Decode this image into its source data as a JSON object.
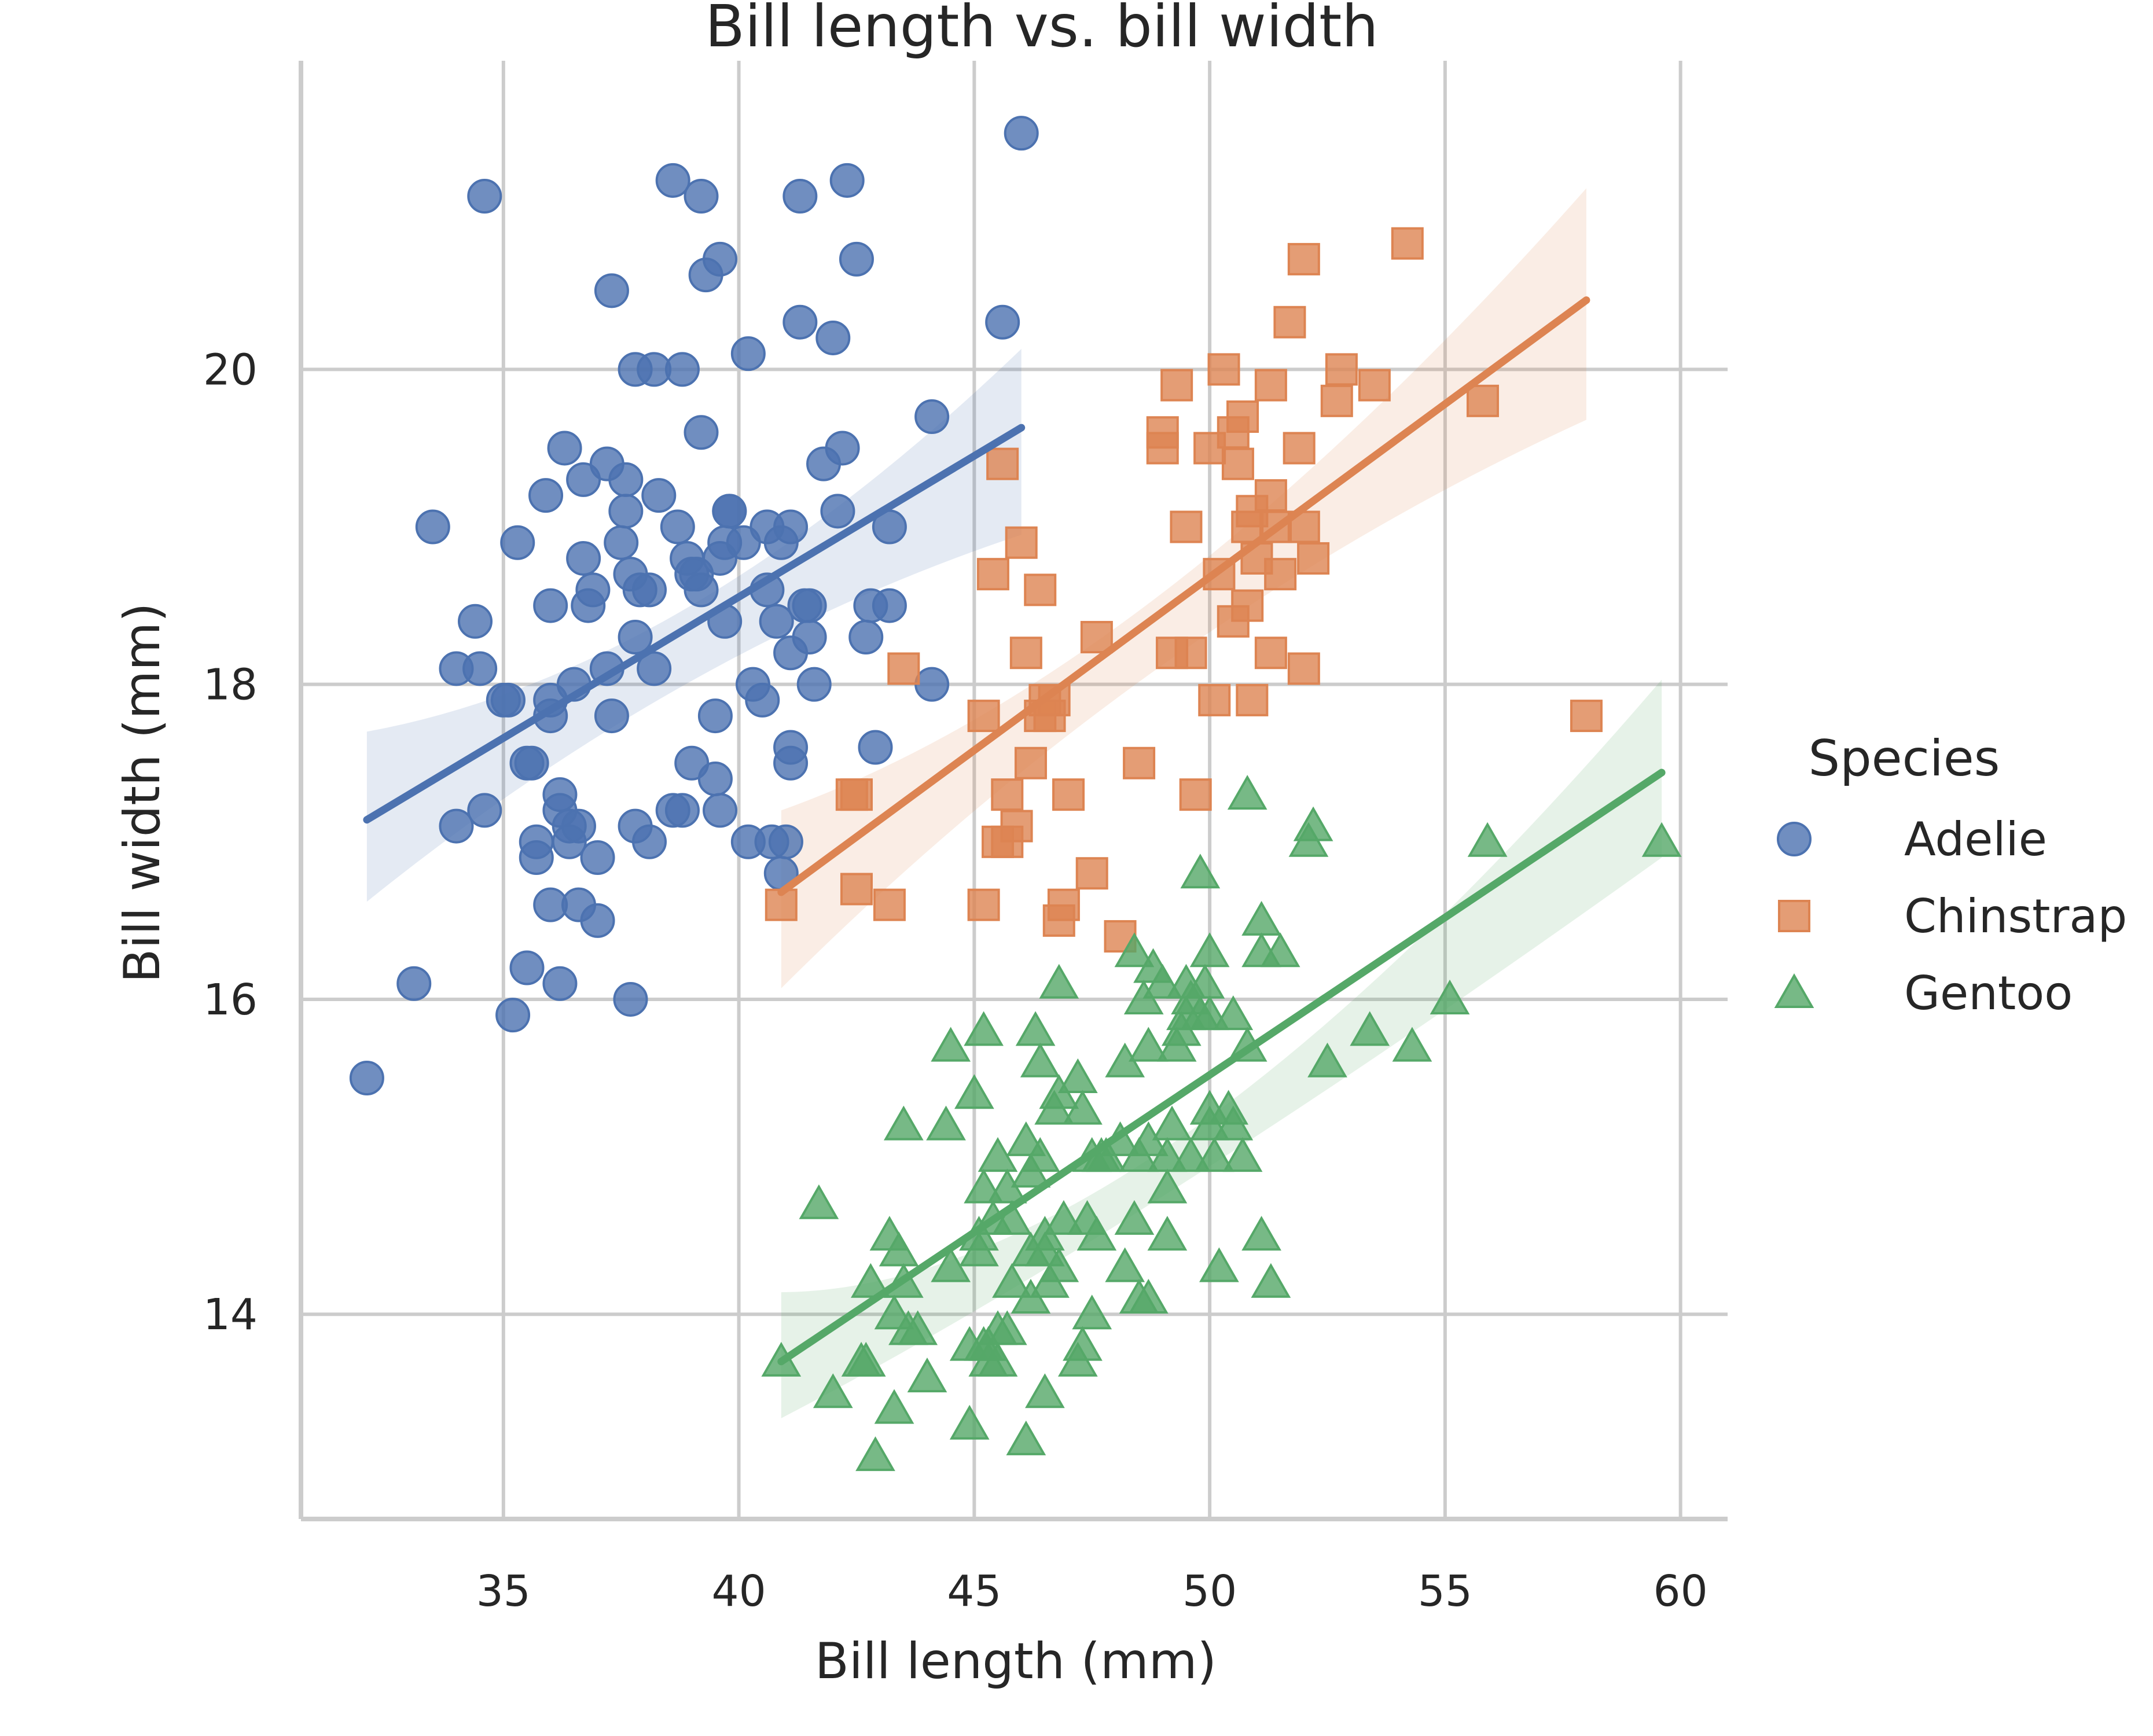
{
  "chart_data": {
    "type": "scatter",
    "title": "Bill length vs. bill width",
    "xlabel": "Bill length (mm)",
    "ylabel": "Bill width (mm)",
    "xlim": [
      30.7,
      61.0
    ],
    "ylim": [
      12.7,
      21.96
    ],
    "xticks": [
      35,
      40,
      45,
      50,
      55,
      60
    ],
    "yticks": [
      14,
      16,
      18,
      20
    ],
    "grid": true,
    "legend": {
      "title": "Species",
      "placement": "right-center"
    },
    "series": [
      {
        "name": "Adelie",
        "marker": "circle",
        "color": "#4c72b0",
        "points": [
          [
            32.1,
            15.5
          ],
          [
            33.1,
            16.1
          ],
          [
            33.5,
            19.0
          ],
          [
            34.0,
            17.1
          ],
          [
            34.0,
            18.1
          ],
          [
            34.4,
            18.4
          ],
          [
            34.5,
            18.1
          ],
          [
            34.6,
            21.1
          ],
          [
            34.6,
            17.2
          ],
          [
            35.0,
            17.9
          ],
          [
            35.1,
            17.9
          ],
          [
            35.2,
            15.9
          ],
          [
            35.3,
            18.9
          ],
          [
            35.5,
            17.5
          ],
          [
            35.5,
            16.2
          ],
          [
            35.6,
            17.5
          ],
          [
            35.7,
            16.9
          ],
          [
            35.7,
            17.0
          ],
          [
            35.9,
            19.2
          ],
          [
            36.0,
            17.9
          ],
          [
            36.0,
            18.5
          ],
          [
            36.0,
            16.6
          ],
          [
            36.0,
            17.8
          ],
          [
            36.2,
            17.2
          ],
          [
            36.2,
            16.1
          ],
          [
            36.2,
            17.3
          ],
          [
            36.3,
            19.5
          ],
          [
            36.4,
            17.1
          ],
          [
            36.4,
            17.0
          ],
          [
            36.5,
            18.0
          ],
          [
            36.6,
            17.1
          ],
          [
            36.6,
            16.6
          ],
          [
            36.7,
            18.8
          ],
          [
            36.7,
            19.3
          ],
          [
            36.8,
            18.5
          ],
          [
            36.9,
            18.6
          ],
          [
            37.0,
            16.9
          ],
          [
            37.0,
            16.5
          ],
          [
            37.2,
            18.1
          ],
          [
            37.2,
            19.4
          ],
          [
            37.3,
            17.8
          ],
          [
            37.3,
            20.5
          ],
          [
            37.5,
            18.9
          ],
          [
            37.6,
            19.3
          ],
          [
            37.6,
            19.1
          ],
          [
            37.7,
            16.0
          ],
          [
            37.7,
            18.7
          ],
          [
            37.8,
            17.1
          ],
          [
            37.8,
            18.3
          ],
          [
            37.8,
            20.0
          ],
          [
            37.9,
            18.6
          ],
          [
            38.1,
            18.6
          ],
          [
            38.1,
            17.0
          ],
          [
            38.2,
            18.1
          ],
          [
            38.2,
            20.0
          ],
          [
            38.3,
            19.2
          ],
          [
            38.6,
            21.2
          ],
          [
            38.6,
            17.2
          ],
          [
            38.7,
            19.0
          ],
          [
            38.8,
            17.2
          ],
          [
            38.8,
            20.0
          ],
          [
            38.9,
            18.8
          ],
          [
            39.0,
            17.5
          ],
          [
            39.0,
            18.7
          ],
          [
            39.1,
            18.7
          ],
          [
            39.2,
            19.6
          ],
          [
            39.2,
            21.1
          ],
          [
            39.2,
            18.6
          ],
          [
            39.3,
            20.6
          ],
          [
            39.5,
            17.4
          ],
          [
            39.5,
            17.8
          ],
          [
            39.6,
            17.2
          ],
          [
            39.6,
            18.8
          ],
          [
            39.6,
            20.7
          ],
          [
            39.7,
            18.4
          ],
          [
            39.7,
            18.9
          ],
          [
            39.8,
            19.1
          ],
          [
            39.8,
            19.1
          ],
          [
            40.1,
            18.9
          ],
          [
            40.2,
            17.0
          ],
          [
            40.2,
            20.1
          ],
          [
            40.3,
            18.0
          ],
          [
            40.5,
            17.9
          ],
          [
            40.6,
            18.6
          ],
          [
            40.6,
            19.0
          ],
          [
            40.7,
            17.0
          ],
          [
            40.8,
            18.4
          ],
          [
            40.9,
            18.9
          ],
          [
            40.9,
            16.8
          ],
          [
            41.0,
            17.0
          ],
          [
            41.1,
            17.6
          ],
          [
            41.1,
            18.2
          ],
          [
            41.1,
            17.5
          ],
          [
            41.1,
            19.0
          ],
          [
            41.3,
            20.3
          ],
          [
            41.3,
            21.1
          ],
          [
            41.4,
            18.5
          ],
          [
            41.5,
            18.3
          ],
          [
            41.5,
            18.5
          ],
          [
            41.6,
            18.0
          ],
          [
            41.8,
            19.4
          ],
          [
            42.0,
            20.2
          ],
          [
            42.1,
            19.1
          ],
          [
            42.2,
            19.5
          ],
          [
            42.3,
            21.2
          ],
          [
            42.5,
            20.7
          ],
          [
            42.7,
            18.3
          ],
          [
            42.8,
            18.5
          ],
          [
            42.9,
            17.6
          ],
          [
            43.2,
            19.0
          ],
          [
            43.2,
            18.5
          ],
          [
            44.1,
            19.7
          ],
          [
            44.1,
            18.0
          ],
          [
            45.6,
            20.3
          ],
          [
            46.0,
            21.5
          ]
        ]
      },
      {
        "name": "Chinstrap",
        "marker": "square",
        "color": "#dd8452",
        "points": [
          [
            40.9,
            16.6
          ],
          [
            42.4,
            17.3
          ],
          [
            42.5,
            17.3
          ],
          [
            42.5,
            16.7
          ],
          [
            43.2,
            16.6
          ],
          [
            43.5,
            18.1
          ],
          [
            45.2,
            17.8
          ],
          [
            45.2,
            16.6
          ],
          [
            45.4,
            18.7
          ],
          [
            45.5,
            17.0
          ],
          [
            45.6,
            19.4
          ],
          [
            45.7,
            17.0
          ],
          [
            45.7,
            17.3
          ],
          [
            45.9,
            17.1
          ],
          [
            46.0,
            18.9
          ],
          [
            46.1,
            18.2
          ],
          [
            46.2,
            17.5
          ],
          [
            46.4,
            18.6
          ],
          [
            46.4,
            17.8
          ],
          [
            46.5,
            17.9
          ],
          [
            46.6,
            17.8
          ],
          [
            46.7,
            17.9
          ],
          [
            46.8,
            16.5
          ],
          [
            46.9,
            16.6
          ],
          [
            47.0,
            17.3
          ],
          [
            47.5,
            16.8
          ],
          [
            47.6,
            18.3
          ],
          [
            48.1,
            16.4
          ],
          [
            48.5,
            17.5
          ],
          [
            49.0,
            19.5
          ],
          [
            49.0,
            19.6
          ],
          [
            49.2,
            18.2
          ],
          [
            49.3,
            19.9
          ],
          [
            49.5,
            19.0
          ],
          [
            49.6,
            18.2
          ],
          [
            49.7,
            17.3
          ],
          [
            50.0,
            19.5
          ],
          [
            50.1,
            17.9
          ],
          [
            50.2,
            18.7
          ],
          [
            50.3,
            20.0
          ],
          [
            50.5,
            18.4
          ],
          [
            50.5,
            19.6
          ],
          [
            50.6,
            19.4
          ],
          [
            50.7,
            19.7
          ],
          [
            50.8,
            18.5
          ],
          [
            50.8,
            19.0
          ],
          [
            50.9,
            19.1
          ],
          [
            50.9,
            17.9
          ],
          [
            51.0,
            18.8
          ],
          [
            51.3,
            18.2
          ],
          [
            51.3,
            19.2
          ],
          [
            51.3,
            19.9
          ],
          [
            51.4,
            19.0
          ],
          [
            51.5,
            18.7
          ],
          [
            51.7,
            20.3
          ],
          [
            51.9,
            19.5
          ],
          [
            52.0,
            18.1
          ],
          [
            52.0,
            20.7
          ],
          [
            52.0,
            19.0
          ],
          [
            52.2,
            18.8
          ],
          [
            52.7,
            19.8
          ],
          [
            52.8,
            20.0
          ],
          [
            53.5,
            19.9
          ],
          [
            54.2,
            20.8
          ],
          [
            55.8,
            19.8
          ],
          [
            58.0,
            17.8
          ]
        ]
      },
      {
        "name": "Gentoo",
        "marker": "triangle",
        "color": "#55a868",
        "points": [
          [
            40.9,
            13.7
          ],
          [
            41.7,
            14.7
          ],
          [
            42.0,
            13.5
          ],
          [
            42.6,
            13.7
          ],
          [
            42.7,
            13.7
          ],
          [
            42.8,
            14.2
          ],
          [
            42.9,
            13.1
          ],
          [
            43.2,
            14.5
          ],
          [
            43.3,
            13.4
          ],
          [
            43.3,
            14.0
          ],
          [
            43.4,
            14.4
          ],
          [
            43.5,
            14.2
          ],
          [
            43.5,
            15.2
          ],
          [
            43.6,
            13.9
          ],
          [
            43.8,
            13.9
          ],
          [
            44.0,
            13.6
          ],
          [
            44.4,
            15.2
          ],
          [
            44.5,
            14.3
          ],
          [
            44.5,
            15.7
          ],
          [
            44.9,
            13.8
          ],
          [
            44.9,
            13.3
          ],
          [
            45.0,
            15.4
          ],
          [
            45.1,
            14.5
          ],
          [
            45.1,
            14.4
          ],
          [
            45.2,
            13.8
          ],
          [
            45.2,
            14.8
          ],
          [
            45.2,
            15.8
          ],
          [
            45.3,
            13.7
          ],
          [
            45.3,
            13.8
          ],
          [
            45.4,
            14.6
          ],
          [
            45.5,
            13.7
          ],
          [
            45.5,
            13.9
          ],
          [
            45.5,
            15.0
          ],
          [
            45.7,
            13.9
          ],
          [
            45.7,
            14.8
          ],
          [
            45.8,
            14.2
          ],
          [
            45.8,
            14.6
          ],
          [
            46.1,
            13.2
          ],
          [
            46.1,
            15.1
          ],
          [
            46.2,
            14.1
          ],
          [
            46.2,
            14.4
          ],
          [
            46.2,
            14.9
          ],
          [
            46.3,
            15.8
          ],
          [
            46.4,
            15.0
          ],
          [
            46.4,
            15.6
          ],
          [
            46.5,
            13.5
          ],
          [
            46.5,
            14.4
          ],
          [
            46.5,
            14.5
          ],
          [
            46.6,
            14.2
          ],
          [
            46.7,
            15.3
          ],
          [
            46.8,
            14.3
          ],
          [
            46.8,
            15.4
          ],
          [
            46.8,
            16.1
          ],
          [
            46.9,
            14.6
          ],
          [
            47.2,
            13.7
          ],
          [
            47.2,
            15.5
          ],
          [
            47.3,
            13.8
          ],
          [
            47.3,
            15.3
          ],
          [
            47.4,
            14.6
          ],
          [
            47.5,
            14.0
          ],
          [
            47.5,
            15.0
          ],
          [
            47.6,
            14.5
          ],
          [
            47.7,
            15.0
          ],
          [
            47.8,
            15.0
          ],
          [
            48.1,
            15.1
          ],
          [
            48.2,
            14.3
          ],
          [
            48.2,
            15.6
          ],
          [
            48.4,
            14.6
          ],
          [
            48.4,
            16.3
          ],
          [
            48.5,
            14.1
          ],
          [
            48.5,
            15.0
          ],
          [
            48.6,
            16.0
          ],
          [
            48.7,
            14.1
          ],
          [
            48.7,
            15.1
          ],
          [
            48.7,
            15.7
          ],
          [
            48.8,
            16.2
          ],
          [
            49.0,
            16.1
          ],
          [
            49.1,
            14.5
          ],
          [
            49.1,
            14.8
          ],
          [
            49.1,
            15.0
          ],
          [
            49.2,
            15.2
          ],
          [
            49.3,
            15.7
          ],
          [
            49.4,
            15.8
          ],
          [
            49.5,
            15.9
          ],
          [
            49.5,
            16.1
          ],
          [
            49.6,
            15.0
          ],
          [
            49.6,
            16.0
          ],
          [
            49.8,
            15.9
          ],
          [
            49.8,
            16.8
          ],
          [
            49.9,
            16.1
          ],
          [
            50.0,
            15.2
          ],
          [
            50.0,
            15.3
          ],
          [
            50.0,
            15.9
          ],
          [
            50.0,
            16.3
          ],
          [
            50.1,
            15.0
          ],
          [
            50.2,
            14.3
          ],
          [
            50.4,
            15.3
          ],
          [
            50.5,
            15.2
          ],
          [
            50.5,
            15.9
          ],
          [
            50.7,
            15.0
          ],
          [
            50.8,
            15.7
          ],
          [
            50.8,
            17.3
          ],
          [
            51.1,
            14.5
          ],
          [
            51.1,
            16.3
          ],
          [
            51.1,
            16.5
          ],
          [
            51.3,
            14.2
          ],
          [
            51.5,
            16.3
          ],
          [
            52.1,
            17.0
          ],
          [
            52.2,
            17.1
          ],
          [
            52.5,
            15.6
          ],
          [
            53.4,
            15.8
          ],
          [
            54.3,
            15.7
          ],
          [
            55.1,
            16.0
          ],
          [
            55.9,
            17.0
          ],
          [
            59.6,
            17.0
          ]
        ]
      }
    ],
    "regression": [
      {
        "series": "Adelie",
        "x": [
          32.1,
          46.0
        ],
        "y": [
          17.14,
          19.63
        ],
        "ci_low": [
          16.62,
          18.95
        ],
        "ci_mid_low": 18.01,
        "ci_mid_high": 18.49,
        "ci_high": [
          17.7,
          20.13
        ],
        "x_mid": 38.8
      },
      {
        "series": "Chinstrap",
        "x": [
          40.9,
          58.0
        ],
        "y": [
          16.68,
          20.44
        ],
        "ci_low": [
          16.07,
          19.68
        ],
        "ci_mid_low": 18.15,
        "ci_mid_high": 18.61,
        "ci_high": [
          17.2,
          21.15
        ],
        "x_mid": 48.8
      },
      {
        "series": "Gentoo",
        "x": [
          40.9,
          59.6
        ],
        "y": [
          13.7,
          17.44
        ],
        "ci_low": [
          13.34,
          16.9
        ],
        "ci_mid_low": 14.82,
        "ci_mid_high": 15.12,
        "ci_high": [
          14.14,
          18.03
        ],
        "x_mid": 48.5
      }
    ]
  }
}
